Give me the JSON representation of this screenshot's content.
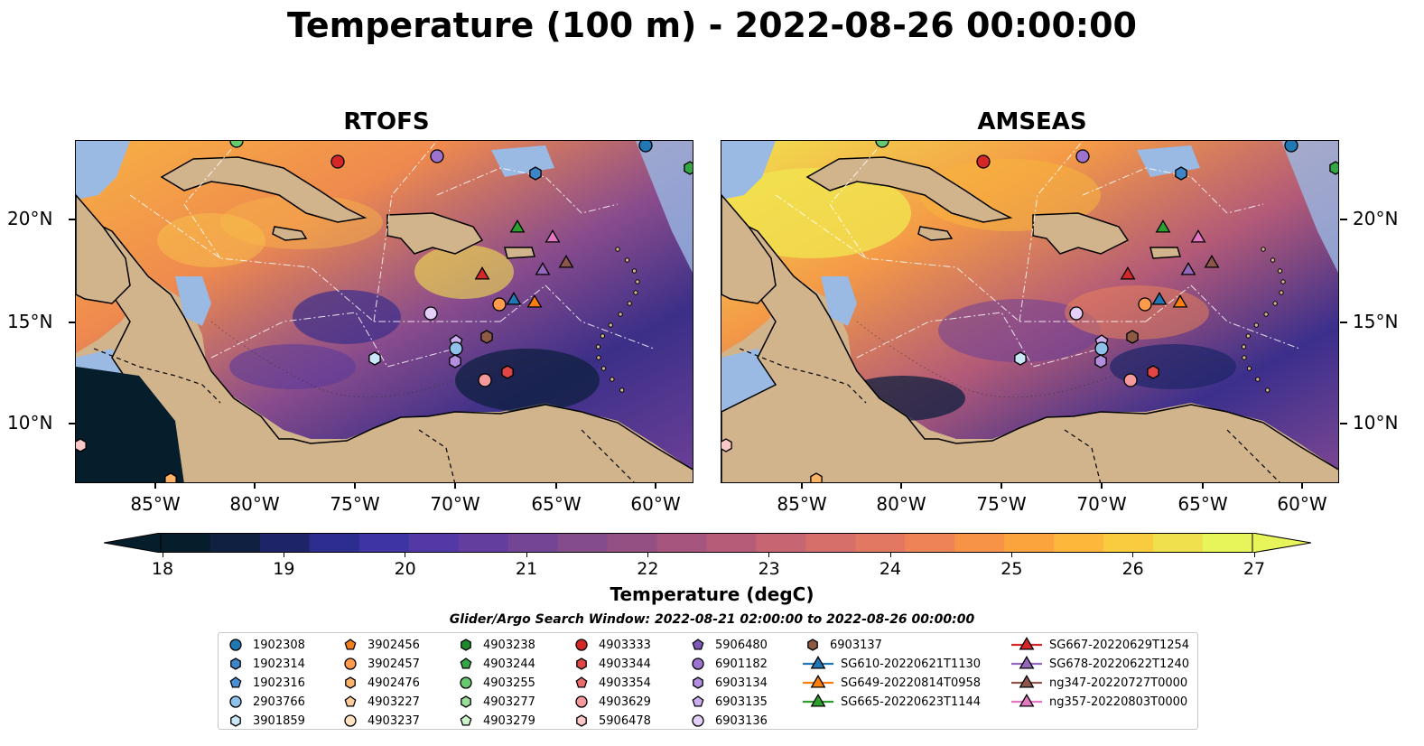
{
  "title": "Temperature (100 m) - 2022-08-26 00:00:00",
  "panels": [
    {
      "title": "RTOFS"
    },
    {
      "title": "AMSEAS"
    }
  ],
  "axes": {
    "lon_labels": [
      "85°W",
      "80°W",
      "75°W",
      "70°W",
      "65°W",
      "60°W"
    ],
    "lat_labels": [
      "20°N",
      "15°N",
      "10°N"
    ]
  },
  "colorbar": {
    "label": "Temperature (degC)",
    "ticks": [
      "18",
      "19",
      "20",
      "21",
      "22",
      "23",
      "24",
      "25",
      "26",
      "27"
    ],
    "range": [
      18,
      27
    ],
    "colors": [
      "#061e2c",
      "#0f2040",
      "#1d2568",
      "#2c2d8f",
      "#3e34a4",
      "#5239a6",
      "#633e9e",
      "#744594",
      "#844c8a",
      "#944f83",
      "#a5557e",
      "#b65c78",
      "#c76572",
      "#d66e6a",
      "#e37862",
      "#ee8455",
      "#f69347",
      "#fba43e",
      "#fdb73b",
      "#f9cb3f",
      "#f1e04d",
      "#e8f55a"
    ]
  },
  "legend": {
    "title": "Glider/Argo Search Window: 2022-08-21 02:00:00 to 2022-08-26 00:00:00",
    "items": [
      {
        "label": "1902308",
        "shape": "circle",
        "color": "#1f77b4"
      },
      {
        "label": "1902314",
        "shape": "hexagon",
        "color": "#3d85c6"
      },
      {
        "label": "1902316",
        "shape": "pentagon",
        "color": "#4a90d9"
      },
      {
        "label": "2903766",
        "shape": "circle",
        "color": "#8fc1ea"
      },
      {
        "label": "3901859",
        "shape": "hexagon",
        "color": "#c9e7f7"
      },
      {
        "label": "3902456",
        "shape": "pentagon",
        "color": "#ef7f1a"
      },
      {
        "label": "3902457",
        "shape": "circle",
        "color": "#ff9b4a"
      },
      {
        "label": "4902476",
        "shape": "hexagon",
        "color": "#ffb366"
      },
      {
        "label": "4903227",
        "shape": "pentagon",
        "color": "#ffcc99"
      },
      {
        "label": "4903237",
        "shape": "circle",
        "color": "#ffe2c2"
      },
      {
        "label": "4903238",
        "shape": "hexagon",
        "color": "#1e8a2c"
      },
      {
        "label": "4903244",
        "shape": "pentagon",
        "color": "#35a645"
      },
      {
        "label": "4903255",
        "shape": "circle",
        "color": "#66c96e"
      },
      {
        "label": "4903277",
        "shape": "hexagon",
        "color": "#98de99"
      },
      {
        "label": "4903279",
        "shape": "pentagon",
        "color": "#cdf3c9"
      },
      {
        "label": "4903333",
        "shape": "circle",
        "color": "#d62728"
      },
      {
        "label": "4903344",
        "shape": "hexagon",
        "color": "#e04646"
      },
      {
        "label": "4903354",
        "shape": "pentagon",
        "color": "#ea6b6b"
      },
      {
        "label": "4903629",
        "shape": "circle",
        "color": "#f49a9a"
      },
      {
        "label": "5906478",
        "shape": "hexagon",
        "color": "#fbc8c8"
      },
      {
        "label": "5906480",
        "shape": "pentagon",
        "color": "#7e57b8"
      },
      {
        "label": "6901182",
        "shape": "circle",
        "color": "#9e72cf"
      },
      {
        "label": "6903134",
        "shape": "hexagon",
        "color": "#b48fe0"
      },
      {
        "label": "6903135",
        "shape": "pentagon",
        "color": "#cbaef0"
      },
      {
        "label": "6903136",
        "shape": "circle",
        "color": "#e2cffa"
      },
      {
        "label": "6903137",
        "shape": "hexagon",
        "color": "#8c5a45"
      },
      {
        "label": "SG610-20220621T1130",
        "shape": "triangle-line",
        "color": "#1f77b4"
      },
      {
        "label": "SG649-20220814T0958",
        "shape": "triangle-line",
        "color": "#ff7f0e"
      },
      {
        "label": "SG665-20220623T1144",
        "shape": "triangle-line",
        "color": "#2ca02c"
      },
      {
        "label": "SG667-20220629T1254",
        "shape": "triangle-line",
        "color": "#d62728"
      },
      {
        "label": "SG678-20220622T1240",
        "shape": "triangle-line",
        "color": "#9467bd"
      },
      {
        "label": "ng347-20220727T0000",
        "shape": "triangle-line",
        "color": "#8c564b"
      },
      {
        "label": "ng357-20220803T0000",
        "shape": "triangle-line",
        "color": "#e377c2"
      }
    ]
  }
}
